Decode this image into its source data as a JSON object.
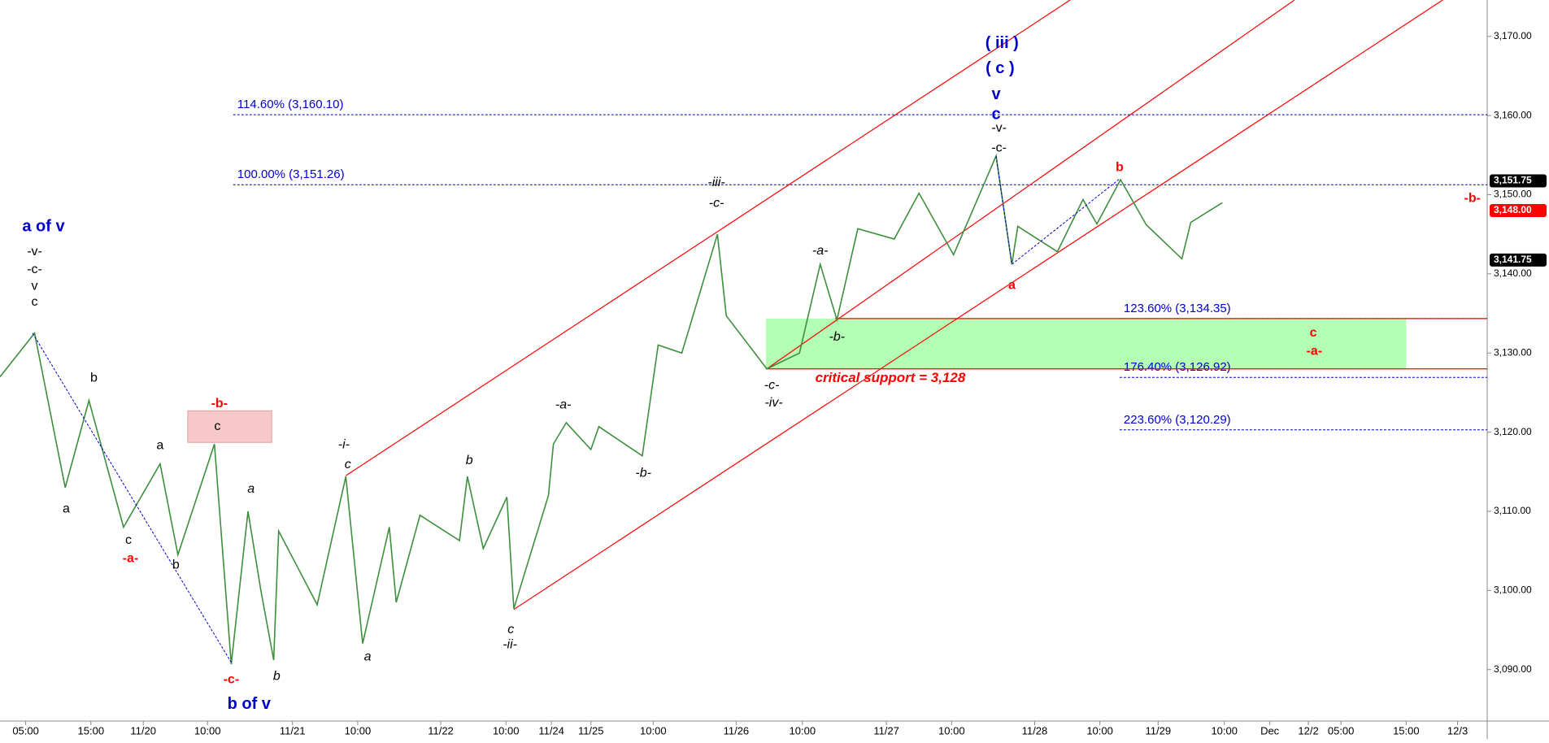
{
  "chart_data": {
    "type": "line",
    "xlim": [
      0,
      150.5
    ],
    "ylim": [
      3083.5,
      3174.6
    ],
    "xticks": [
      {
        "value": 2.6,
        "label": "05:00"
      },
      {
        "value": 9.2,
        "label": "15:00"
      },
      {
        "value": 14.5,
        "label": "11/20"
      },
      {
        "value": 21,
        "label": "10:00"
      },
      {
        "value": 29.6,
        "label": "11/21"
      },
      {
        "value": 36.2,
        "label": "10:00"
      },
      {
        "value": 44.6,
        "label": "11/22"
      },
      {
        "value": 51.2,
        "label": "10:00"
      },
      {
        "value": 55.8,
        "label": "11/24"
      },
      {
        "value": 59.8,
        "label": "11/25"
      },
      {
        "value": 66.1,
        "label": "10:00"
      },
      {
        "value": 74.5,
        "label": "11/26"
      },
      {
        "value": 81.2,
        "label": "10:00"
      },
      {
        "value": 89.7,
        "label": "11/27"
      },
      {
        "value": 96.3,
        "label": "10:00"
      },
      {
        "value": 104.7,
        "label": "11/28"
      },
      {
        "value": 111.3,
        "label": "10:00"
      },
      {
        "value": 117.2,
        "label": "11/29"
      },
      {
        "value": 123.9,
        "label": "10:00"
      },
      {
        "value": 128.5,
        "label": "Dec"
      },
      {
        "value": 132.4,
        "label": "12/2"
      },
      {
        "value": 135.7,
        "label": "05:00"
      },
      {
        "value": 142.3,
        "label": "15:00"
      },
      {
        "value": 147.5,
        "label": "12/3"
      }
    ],
    "yticks": [
      {
        "value": 3090,
        "label": "3,090.00"
      },
      {
        "value": 3100,
        "label": "3,100.00"
      },
      {
        "value": 3110,
        "label": "3,110.00"
      },
      {
        "value": 3120,
        "label": "3,120.00"
      },
      {
        "value": 3130,
        "label": "3,130.00"
      },
      {
        "value": 3140,
        "label": "3,140.00"
      },
      {
        "value": 3150,
        "label": "3,150.00"
      },
      {
        "value": 3160,
        "label": "3,160.00"
      },
      {
        "value": 3170,
        "label": "3,170.00"
      }
    ],
    "series": [
      {
        "color": "#3d8f3d",
        "x": [
          0,
          3.5,
          6.6,
          9,
          12.5,
          16.2,
          18,
          21.7,
          23.4,
          25.1,
          26.4,
          27.7,
          28.2,
          32.1,
          35,
          36.7,
          39.4,
          40.1,
          42.5,
          46.5,
          47.3,
          48.9,
          51.3,
          52,
          55.5,
          56,
          57.3,
          59.8,
          60.6,
          65,
          66.6,
          69,
          72.6,
          73.5,
          77.6,
          80.9,
          83,
          84.7,
          86.8,
          90.5,
          93,
          96.5,
          100.8,
          102.4,
          103,
          107,
          109.6,
          111,
          113.4,
          116,
          119.6,
          120.5,
          123.7
        ],
        "values": [
          3127,
          3132.5,
          3113,
          3124,
          3108,
          3116,
          3104.5,
          3118.5,
          3090.7,
          3110,
          3100,
          3091.2,
          3107.5,
          3098.2,
          3114.4,
          3093.3,
          3108,
          3098.5,
          3109.5,
          3106.3,
          3114.4,
          3105.3,
          3111.8,
          3097.7,
          3112,
          3118.5,
          3121.2,
          3117.8,
          3120.7,
          3117,
          3131,
          3130,
          3145,
          3134.7,
          3128,
          3130,
          3141.2,
          3134.2,
          3145.7,
          3144.4,
          3150.2,
          3142.4,
          3154.9,
          3141.2,
          3146,
          3142.8,
          3149.4,
          3146.3,
          3151.9,
          3146.2,
          3141.9,
          3146.5,
          3149
        ]
      }
    ],
    "fib_levels": [
      {
        "label": "114.60% (3,160.10)",
        "value": 3160.1,
        "start": 23.6
      },
      {
        "label": "100.00% (3,151.26)",
        "value": 3151.26,
        "start": 23.6
      },
      {
        "label": "123.60% (3,134.35)",
        "value": 3134.35,
        "start": 113.3
      },
      {
        "label": "176.40% (3,126.92)",
        "value": 3126.92,
        "start": 113.3
      },
      {
        "label": "223.60% (3,120.29)",
        "value": 3120.29,
        "start": 113.3
      }
    ],
    "price_tags": [
      {
        "label": "3,151.75",
        "value": 3151.75,
        "color": "#000000"
      },
      {
        "label": "3,148.00",
        "value": 3148,
        "color": "#ff0000"
      },
      {
        "label": "3,141.75",
        "value": 3141.75,
        "color": "#000000"
      }
    ],
    "zones": [
      {
        "x": [
          77.5,
          142.3
        ],
        "y": [
          3128,
          3134.35
        ],
        "color": "#b3ffb3"
      },
      {
        "x": [
          19,
          27.5
        ],
        "y": [
          3118.7,
          3122.7
        ],
        "color": "#f8c8c8"
      }
    ],
    "support_lines": [
      {
        "value": 3134.35,
        "start": 84.5,
        "color": "#ff0000"
      },
      {
        "value": 3128,
        "start": 77.5,
        "color": "#ff0000"
      }
    ],
    "channel_lines": [
      {
        "x": [
          35,
          108.3
        ],
        "y": [
          3114.5,
          3174.6
        ],
        "color": "#ff0000"
      },
      {
        "x": [
          77.6,
          131
        ],
        "y": [
          3128,
          3174.6
        ],
        "color": "#ff0000"
      },
      {
        "x": [
          52,
          146
        ],
        "y": [
          3097.6,
          3174.6
        ],
        "color": "#ff0000"
      }
    ],
    "wave_lines": [
      {
        "x": [
          3.3,
          23.5
        ],
        "y": [
          3132.5,
          3090.7
        ],
        "color": "#0000cc"
      },
      {
        "x": [
          100.8,
          102.4,
          113.3
        ],
        "y": [
          3154.9,
          3141.2,
          3152
        ],
        "color": "#0000cc"
      }
    ],
    "annotations": [
      {
        "text": "a of v",
        "x": 4.4,
        "y": 3145.9,
        "color": "#0000cc",
        "italic": false
      },
      {
        "text": "-v-",
        "x": 3.5,
        "y": 3142.8,
        "color": "#000000",
        "italic": false
      },
      {
        "text": "-c-",
        "x": 3.5,
        "y": 3140.5,
        "color": "#000000",
        "italic": false
      },
      {
        "text": "v",
        "x": 3.5,
        "y": 3138.4,
        "color": "#000000",
        "italic": false
      },
      {
        "text": "c",
        "x": 3.5,
        "y": 3136.4,
        "color": "#000000",
        "italic": false
      },
      {
        "text": "b",
        "x": 9.5,
        "y": 3126.8,
        "color": "#000000",
        "italic": false
      },
      {
        "text": "a",
        "x": 6.7,
        "y": 3110.3,
        "color": "#000000",
        "italic": false
      },
      {
        "text": "c",
        "x": 13,
        "y": 3106.3,
        "color": "#000000",
        "italic": false
      },
      {
        "text": "-a-",
        "x": 13.2,
        "y": 3104,
        "color": "#ff0000",
        "italic": false
      },
      {
        "text": "b",
        "x": 17.8,
        "y": 3103.2,
        "color": "#000000",
        "italic": false
      },
      {
        "text": "a",
        "x": 16.2,
        "y": 3118.3,
        "color": "#000000",
        "italic": false
      },
      {
        "text": "-b-",
        "x": 22.2,
        "y": 3123.6,
        "color": "#ff0000",
        "italic": false
      },
      {
        "text": "c",
        "x": 22,
        "y": 3120.7,
        "color": "#000000",
        "italic": false
      },
      {
        "text": "a",
        "x": 25.4,
        "y": 3112.8,
        "color": "#000000",
        "italic": true
      },
      {
        "text": "-c-",
        "x": 23.4,
        "y": 3088.7,
        "color": "#ff0000",
        "italic": false
      },
      {
        "text": "b of v",
        "x": 25.2,
        "y": 3085.6,
        "color": "#0000cc",
        "italic": false
      },
      {
        "text": "b",
        "x": 28,
        "y": 3089.1,
        "color": "#000000",
        "italic": true
      },
      {
        "text": "a",
        "x": 37.2,
        "y": 3091.6,
        "color": "#000000",
        "italic": true
      },
      {
        "text": "-i-",
        "x": 34.8,
        "y": 3118.4,
        "color": "#000000",
        "italic": true
      },
      {
        "text": "c",
        "x": 35.2,
        "y": 3115.9,
        "color": "#000000",
        "italic": true
      },
      {
        "text": "b",
        "x": 47.5,
        "y": 3116.4,
        "color": "#000000",
        "italic": true
      },
      {
        "text": "c",
        "x": 51.7,
        "y": 3095,
        "color": "#000000",
        "italic": true
      },
      {
        "text": "-ii-",
        "x": 51.6,
        "y": 3093.1,
        "color": "#000000",
        "italic": true
      },
      {
        "text": "-a-",
        "x": 57,
        "y": 3123.4,
        "color": "#000000",
        "italic": true
      },
      {
        "text": "-b-",
        "x": 65.1,
        "y": 3114.8,
        "color": "#000000",
        "italic": true
      },
      {
        "text": "-iii-",
        "x": 72.5,
        "y": 3151.5,
        "color": "#000000",
        "italic": true
      },
      {
        "text": "-c-",
        "x": 72.5,
        "y": 3148.9,
        "color": "#000000",
        "italic": true
      },
      {
        "text": "-a-",
        "x": 83,
        "y": 3142.9,
        "color": "#000000",
        "italic": true
      },
      {
        "text": "-b-",
        "x": 84.7,
        "y": 3132,
        "color": "#000000",
        "italic": true
      },
      {
        "text": "-c-",
        "x": 78.1,
        "y": 3125.9,
        "color": "#000000",
        "italic": true
      },
      {
        "text": "-iv-",
        "x": 78.3,
        "y": 3123.7,
        "color": "#000000",
        "italic": true
      },
      {
        "text": "( iii )",
        "x": 101.4,
        "y": 3169.1,
        "color": "#0000cc",
        "italic": false
      },
      {
        "text": "( c )",
        "x": 101.2,
        "y": 3165.9,
        "color": "#0000cc",
        "italic": false
      },
      {
        "text": "v",
        "x": 100.8,
        "y": 3162.6,
        "color": "#0000cc",
        "italic": false
      },
      {
        "text": "c",
        "x": 100.8,
        "y": 3160.1,
        "color": "#0000cc",
        "italic": false
      },
      {
        "text": "-v-",
        "x": 101.1,
        "y": 3158.4,
        "color": "#000000",
        "italic": false
      },
      {
        "text": "-c-",
        "x": 101.1,
        "y": 3155.9,
        "color": "#000000",
        "italic": false
      },
      {
        "text": "b",
        "x": 113.3,
        "y": 3153.4,
        "color": "#ff0000",
        "italic": false
      },
      {
        "text": "a",
        "x": 102.4,
        "y": 3138.5,
        "color": "#ff0000",
        "italic": false
      },
      {
        "text": "c",
        "x": 132.9,
        "y": 3132.5,
        "color": "#ff0000",
        "italic": false
      },
      {
        "text": "-a-",
        "x": 133,
        "y": 3130.2,
        "color": "#ff0000",
        "italic": false
      },
      {
        "text": "-b-",
        "x": 149,
        "y": 3149.5,
        "color": "#ff0000",
        "italic": false
      }
    ],
    "note": {
      "text": "critical support  = 3,128",
      "x": 82.5,
      "y": 3126.8,
      "color": "#ff0000"
    }
  }
}
